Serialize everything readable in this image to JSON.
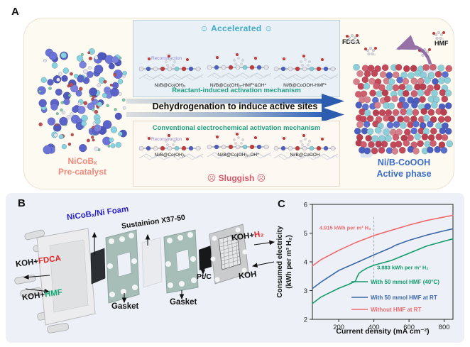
{
  "panel_a": {
    "label": "A",
    "pre_catalyst": {
      "line1": "NiCoBₓ",
      "line2": "Pre-catalyst"
    },
    "accelerated": {
      "emoji_left": "☺",
      "title": "Accelerated",
      "emoji_right": "☺"
    },
    "reconstruction": "Reconstruction",
    "top_structures": [
      "Ni/B@Co(OH)₂",
      "Ni/B@Co(OH)₂-HMF*&OH*",
      "Ni/B@CoOOH-HMF*"
    ],
    "reactant_mechanism": "Reactant-induced activation mechanism",
    "arrow_text": "Dehydrogenation to induce active sites",
    "conventional_mechanism": "Conventional electrochemical activation mechanism",
    "bottom_structures": [
      "Ni/B@Co(OH)₂",
      "Ni/B@Co(OH)₂-OH*",
      "Ni/B@CoOOH"
    ],
    "sluggish": {
      "emoji_left": "☹",
      "title": "Sluggish",
      "emoji_right": "☹"
    },
    "fdca": "FDCA",
    "hmf": "HMF",
    "active_phase": {
      "line1": "Ni/B-CoOOH",
      "line2": "Active phase"
    }
  },
  "panel_b": {
    "label": "B",
    "electrode": "NiCoBₓ/Ni Foam",
    "membrane": "Sustainion X37-50",
    "koh_prefix": "KOH+",
    "fdca": "FDCA",
    "hmf": "HMF",
    "h2": "H₂",
    "koh": "KOH",
    "gasket": "Gasket",
    "ptc": "Pt/C"
  },
  "panel_c": {
    "label": "C"
  },
  "chart_data": {
    "type": "line",
    "xlabel": "Current density (mA cm⁻²)",
    "ylabel_line1": "Consumed electricity",
    "ylabel_line2": "(kWh per m³ H₂)",
    "xlim": [
      50,
      850
    ],
    "ylim": [
      2,
      6
    ],
    "xticks": [
      200,
      400,
      600,
      800
    ],
    "yticks": [
      2,
      3,
      4,
      5,
      6
    ],
    "grid": false,
    "legend_position": "lower right",
    "dashed_vline": {
      "x": 400,
      "y1": 3.45,
      "y2": 5.6
    },
    "annotations": [
      {
        "text": "4.915 kWh per m³ H₂",
        "color": "#ee6a6e",
        "x": 90,
        "y": 5.12
      },
      {
        "text": "3.883 kWh per m³ H₂",
        "color": "#159a6c",
        "x": 418,
        "y": 3.74
      }
    ],
    "series": [
      {
        "name": "With 50 mmol HMF (40°C)",
        "color": "#159a6c",
        "x": [
          50,
          100,
          150,
          200,
          250,
          280,
          295,
          305,
          315,
          330,
          360,
          400,
          500,
          600,
          700,
          800,
          850
        ],
        "y": [
          2.55,
          2.78,
          2.93,
          3.08,
          3.2,
          3.28,
          3.33,
          3.48,
          3.6,
          3.67,
          3.78,
          3.883,
          4.05,
          4.3,
          4.55,
          4.72,
          4.8
        ]
      },
      {
        "name": "With 50 mmol HMF at RT",
        "color": "#3b67a8",
        "x": [
          50,
          100,
          200,
          300,
          400,
          500,
          520,
          600,
          700,
          800,
          850
        ],
        "y": [
          3.07,
          3.3,
          3.7,
          3.97,
          4.24,
          4.5,
          4.57,
          4.75,
          4.93,
          5.08,
          5.15
        ]
      },
      {
        "name": "Without HMF at RT",
        "color": "#ee6a6e",
        "x": [
          50,
          100,
          200,
          300,
          400,
          500,
          600,
          700,
          800,
          850
        ],
        "y": [
          3.86,
          4.08,
          4.4,
          4.68,
          4.915,
          5.1,
          5.28,
          5.44,
          5.56,
          5.62
        ]
      }
    ]
  },
  "colors": {
    "accelerated": "#3fa8c9",
    "sluggish": "#d5566a",
    "mechanism": "#1fa083",
    "reconstruction": "#8f86d8",
    "pre_catalyst": "#f2897b",
    "active_phase": "#3a6cc8",
    "electrode_blue": "#2a22c4",
    "fdca_red": "#e02424",
    "hmf_green": "#0ca86e",
    "h2_red": "#e02424"
  }
}
